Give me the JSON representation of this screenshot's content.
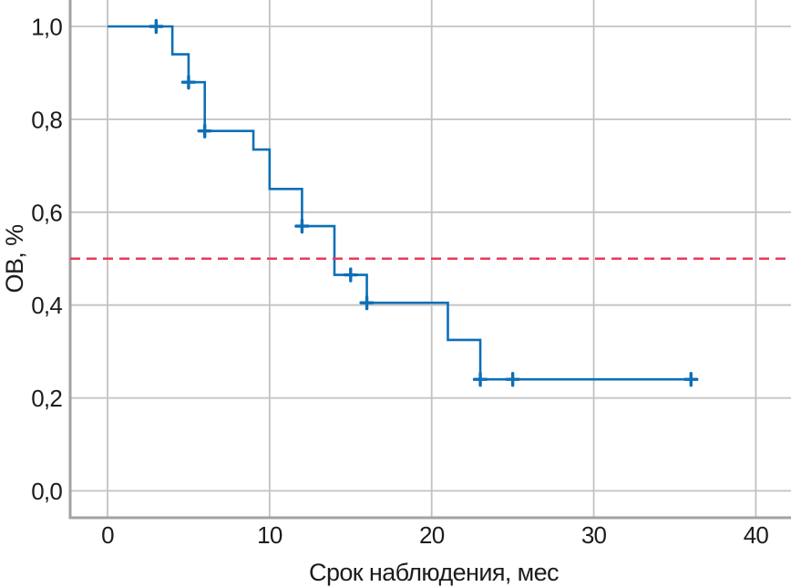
{
  "page": {
    "background": "#ffffff"
  },
  "chart_data": {
    "type": "line",
    "variant": "kaplan_meier_step_survival",
    "title": "",
    "xlabel": "Срок наблюдения, мес",
    "ylabel": "ОВ, %",
    "grid": true,
    "legend": "none",
    "decimal_separator": ",",
    "xlim": [
      -2.3,
      42.2
    ],
    "ylim": [
      -0.06,
      1.06
    ],
    "x_ticks": {
      "values": [
        0,
        10,
        20,
        30,
        40
      ],
      "labels": [
        "0",
        "10",
        "20",
        "30",
        "40"
      ]
    },
    "y_ticks": {
      "values": [
        0.0,
        0.2,
        0.4,
        0.6,
        0.8,
        1.0
      ],
      "labels": [
        "0,0",
        "0,2",
        "0,4",
        "0,6",
        "0,8",
        "1,0"
      ]
    },
    "series": [
      {
        "name": "overall-survival-curve",
        "type": "step",
        "color": "#0c6fb6",
        "points": [
          [
            0,
            1.0
          ],
          [
            4,
            0.94
          ],
          [
            5,
            0.88
          ],
          [
            6,
            0.775
          ],
          [
            9,
            0.735
          ],
          [
            10,
            0.65
          ],
          [
            12,
            0.57
          ],
          [
            14,
            0.465
          ],
          [
            16,
            0.405
          ],
          [
            21,
            0.325
          ],
          [
            23,
            0.24
          ]
        ],
        "end_x": 36,
        "censor_marks": [
          [
            3,
            1.0
          ],
          [
            5,
            0.88
          ],
          [
            6,
            0.775
          ],
          [
            12,
            0.57
          ],
          [
            15,
            0.465
          ],
          [
            16,
            0.405
          ],
          [
            23,
            0.24
          ],
          [
            25,
            0.24
          ],
          [
            36,
            0.24
          ]
        ]
      },
      {
        "name": "median-reference-line",
        "type": "hline",
        "y": 0.5,
        "style": "dashed",
        "color": "#e73a5d"
      }
    ],
    "colors": {
      "grid": "#c2c2c2",
      "axis": "#a2a2a6",
      "text": "#1c1c1c"
    }
  }
}
